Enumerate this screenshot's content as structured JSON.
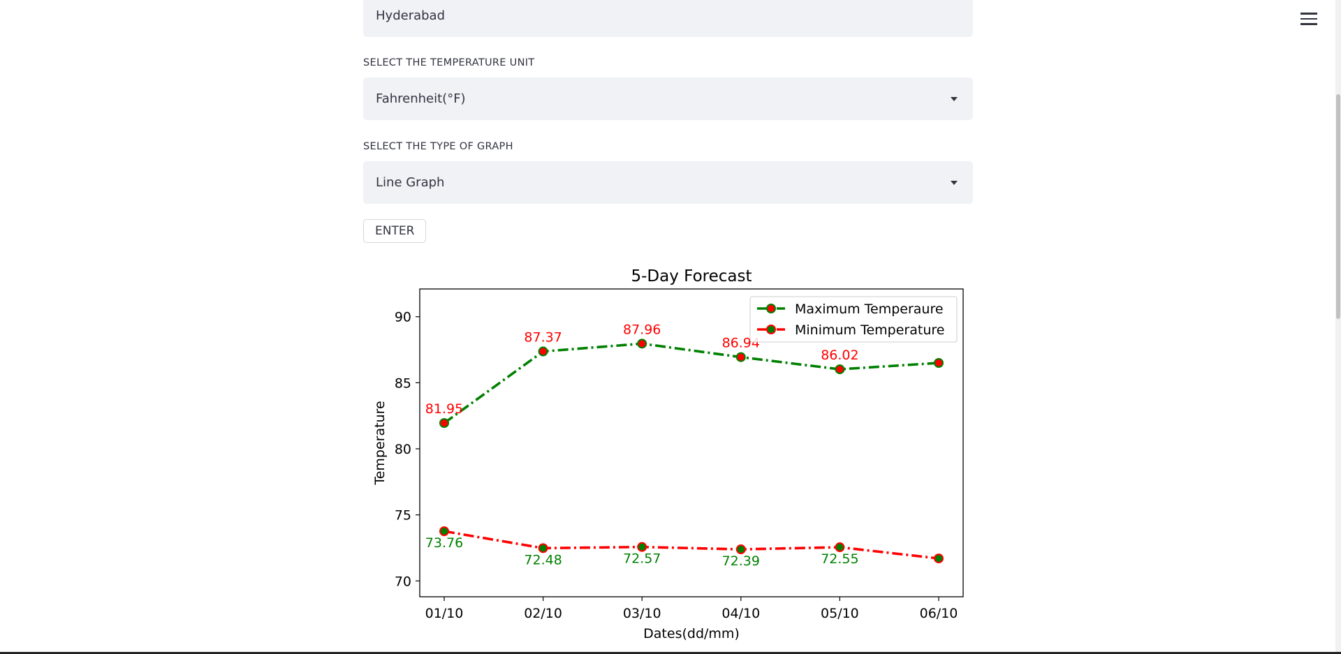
{
  "form": {
    "city_value": "Hyderabad",
    "unit_label": "SELECT THE TEMPERATURE UNIT",
    "unit_value": "Fahrenheit(°F)",
    "graph_label": "SELECT THE TYPE OF GRAPH",
    "graph_value": "Line Graph",
    "enter_label": "ENTER"
  },
  "chart_data": {
    "type": "line",
    "title": "5-Day Forecast",
    "xlabel": "Dates(dd/mm)",
    "ylabel": "Temperature",
    "categories": [
      "01/10",
      "02/10",
      "03/10",
      "04/10",
      "05/10",
      "06/10"
    ],
    "ylim": [
      68.8,
      92.1
    ],
    "yticks": [
      70,
      75,
      80,
      85,
      90
    ],
    "legend_position": "top-right",
    "series": [
      {
        "name": "Maximum Temperaure",
        "color": "#008000",
        "marker_color": "#ff0000",
        "label_color": "#ff0000",
        "values": [
          81.95,
          87.37,
          87.96,
          86.94,
          86.02,
          86.5
        ],
        "labels": [
          "81.95",
          "87.37",
          "87.96",
          "86.94",
          "86.02",
          ""
        ]
      },
      {
        "name": "Minimum Temperature",
        "color": "#ff0000",
        "marker_color": "#008000",
        "label_color": "#008000",
        "values": [
          73.76,
          72.48,
          72.57,
          72.39,
          72.55,
          71.7
        ],
        "labels": [
          "73.76",
          "72.48",
          "72.57",
          "72.39",
          "72.55",
          ""
        ]
      }
    ]
  }
}
